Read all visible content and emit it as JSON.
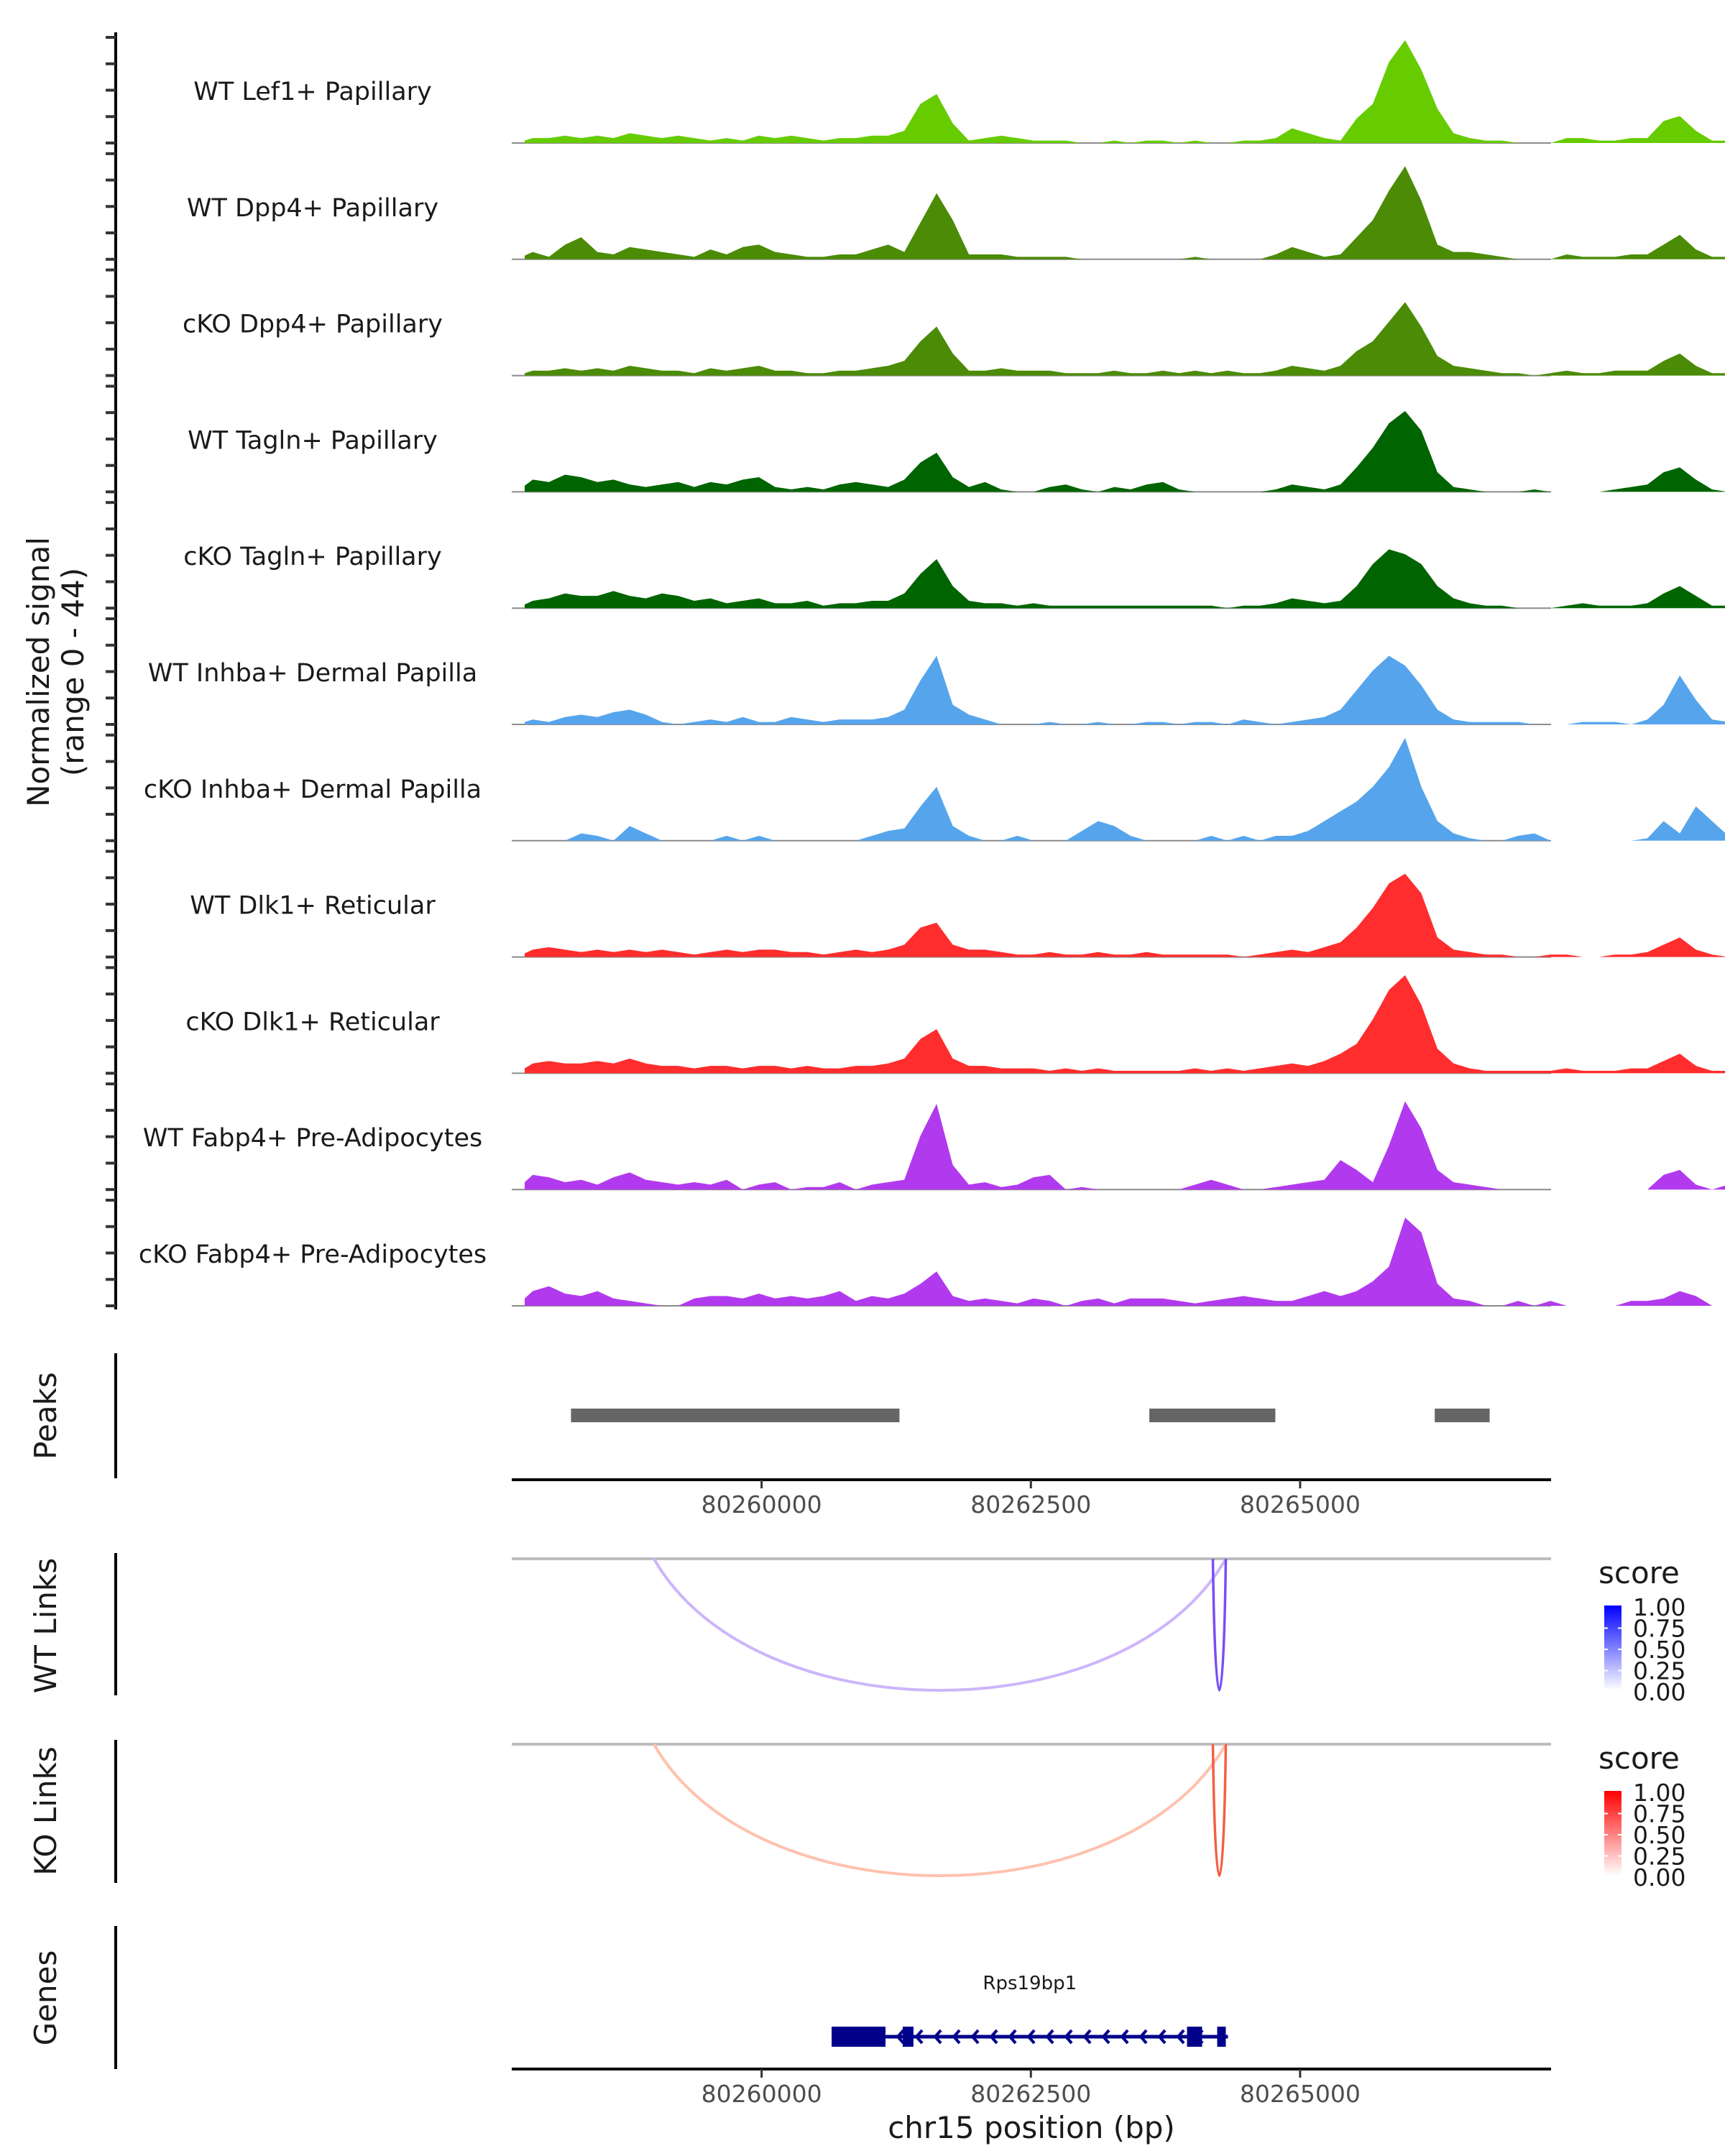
{
  "chart_data": {
    "type": "area",
    "title": "",
    "ylabel": "Normalized signal\n(range 0 - 44)",
    "ylabel_lines": [
      "Normalized signal",
      "(range 0 - 44)"
    ],
    "ylim": [
      0,
      44
    ],
    "xlabel": "chr15 position (bp)",
    "xlim": [
      80257680,
      80267330
    ],
    "x_ticks": [
      80260000,
      80262500,
      80265000
    ],
    "x_tick_labels": [
      "80260000",
      "80262500",
      "80265000"
    ],
    "bin_start": 80257800,
    "bin_size": 150,
    "coverage_tracks": [
      {
        "name": "WT Lef1+ Papillary",
        "color": "#66CC00",
        "values": [
          2,
          2,
          3,
          2,
          3,
          2,
          4,
          3,
          2,
          3,
          2,
          1,
          2,
          1,
          3,
          2,
          3,
          2,
          1,
          2,
          2,
          3,
          3,
          5,
          16,
          20,
          8,
          1,
          2,
          3,
          2,
          1,
          1,
          1,
          0,
          0,
          1,
          0,
          1,
          1,
          0,
          1,
          0,
          0,
          1,
          1,
          2,
          6,
          4,
          2,
          1,
          10,
          16,
          33,
          42,
          30,
          14,
          4,
          2,
          1,
          1,
          0,
          0,
          0,
          2,
          2,
          1,
          1,
          2,
          2,
          9,
          11,
          5,
          1,
          1
        ]
      },
      {
        "name": "WT Dpp4+ Papillary",
        "color": "#4B8B06",
        "values": [
          3,
          1,
          6,
          9,
          3,
          2,
          5,
          4,
          3,
          2,
          1,
          4,
          2,
          5,
          6,
          3,
          2,
          1,
          1,
          2,
          2,
          4,
          6,
          3,
          15,
          27,
          16,
          2,
          2,
          2,
          1,
          1,
          1,
          1,
          0,
          0,
          0,
          0,
          0,
          0,
          0,
          1,
          0,
          0,
          0,
          0,
          2,
          5,
          3,
          1,
          2,
          9,
          16,
          28,
          38,
          24,
          6,
          3,
          3,
          2,
          1,
          0,
          0,
          0,
          2,
          1,
          1,
          1,
          2,
          2,
          6,
          10,
          4,
          1,
          1
        ]
      },
      {
        "name": "cKO Dpp4+ Papillary",
        "color": "#4B8B06",
        "values": [
          2,
          2,
          3,
          2,
          3,
          2,
          4,
          3,
          2,
          2,
          1,
          3,
          2,
          3,
          4,
          2,
          2,
          1,
          1,
          2,
          2,
          3,
          4,
          6,
          14,
          20,
          9,
          2,
          2,
          3,
          2,
          2,
          2,
          1,
          1,
          1,
          2,
          1,
          1,
          2,
          1,
          2,
          1,
          2,
          1,
          1,
          2,
          4,
          3,
          2,
          4,
          10,
          14,
          22,
          30,
          20,
          8,
          4,
          3,
          2,
          1,
          1,
          0,
          1,
          2,
          1,
          1,
          2,
          2,
          2,
          6,
          9,
          4,
          1,
          1
        ]
      },
      {
        "name": "WT Tagln+ Papillary",
        "color": "#006400",
        "values": [
          5,
          4,
          7,
          6,
          4,
          5,
          3,
          2,
          3,
          4,
          2,
          4,
          3,
          5,
          6,
          2,
          1,
          2,
          1,
          3,
          4,
          3,
          2,
          5,
          12,
          16,
          6,
          2,
          4,
          1,
          0,
          0,
          2,
          3,
          1,
          0,
          2,
          1,
          3,
          4,
          1,
          0,
          0,
          0,
          0,
          0,
          1,
          3,
          2,
          1,
          3,
          10,
          18,
          28,
          33,
          25,
          8,
          2,
          1,
          0,
          0,
          0,
          1,
          0,
          0,
          0,
          0,
          1,
          2,
          3,
          8,
          10,
          5,
          1,
          0
        ]
      },
      {
        "name": "cKO Tagln+ Papillary",
        "color": "#006400",
        "values": [
          3,
          4,
          6,
          5,
          5,
          7,
          5,
          4,
          6,
          5,
          3,
          4,
          2,
          3,
          4,
          2,
          2,
          3,
          1,
          2,
          2,
          3,
          3,
          6,
          14,
          20,
          9,
          3,
          2,
          2,
          1,
          2,
          1,
          1,
          1,
          1,
          1,
          1,
          1,
          1,
          1,
          1,
          1,
          0,
          1,
          1,
          2,
          4,
          3,
          2,
          3,
          9,
          18,
          24,
          22,
          18,
          9,
          4,
          2,
          1,
          1,
          0,
          0,
          0,
          1,
          2,
          1,
          1,
          1,
          2,
          6,
          9,
          5,
          1,
          1
        ]
      },
      {
        "name": "WT Inhba+ Dermal Papilla",
        "color": "#56A5EC",
        "values": [
          2,
          1,
          3,
          4,
          3,
          5,
          6,
          4,
          1,
          0,
          1,
          2,
          1,
          3,
          1,
          1,
          3,
          2,
          1,
          2,
          2,
          2,
          3,
          6,
          18,
          28,
          8,
          4,
          2,
          0,
          0,
          0,
          1,
          0,
          0,
          1,
          0,
          0,
          1,
          1,
          0,
          1,
          1,
          0,
          2,
          1,
          0,
          1,
          2,
          3,
          6,
          14,
          22,
          28,
          24,
          16,
          6,
          2,
          1,
          1,
          1,
          1,
          0,
          0,
          0,
          1,
          1,
          1,
          0,
          2,
          8,
          20,
          10,
          2,
          1
        ]
      },
      {
        "name": "cKO Inhba+ Dermal Papilla",
        "color": "#56A5EC",
        "values": [
          0,
          0,
          0,
          3,
          2,
          0,
          6,
          3,
          0,
          0,
          0,
          0,
          2,
          0,
          2,
          0,
          0,
          0,
          0,
          0,
          0,
          2,
          4,
          5,
          14,
          22,
          6,
          2,
          0,
          0,
          2,
          0,
          0,
          0,
          4,
          8,
          6,
          2,
          0,
          0,
          0,
          0,
          2,
          0,
          2,
          0,
          2,
          2,
          4,
          8,
          12,
          16,
          22,
          30,
          42,
          22,
          8,
          3,
          1,
          0,
          0,
          2,
          3,
          0,
          0,
          0,
          0,
          0,
          0,
          1,
          8,
          3,
          14,
          8,
          2
        ]
      },
      {
        "name": "WT Dlk1+ Reticular",
        "color": "#FF2D2D",
        "values": [
          3,
          4,
          3,
          2,
          3,
          2,
          3,
          2,
          3,
          2,
          1,
          2,
          3,
          2,
          3,
          3,
          2,
          2,
          1,
          2,
          3,
          2,
          3,
          5,
          12,
          14,
          5,
          3,
          3,
          2,
          1,
          1,
          2,
          1,
          1,
          2,
          1,
          1,
          2,
          1,
          1,
          1,
          1,
          1,
          0,
          1,
          2,
          3,
          2,
          4,
          6,
          12,
          20,
          30,
          34,
          26,
          8,
          3,
          2,
          1,
          1,
          0,
          0,
          1,
          1,
          0,
          0,
          1,
          1,
          2,
          5,
          8,
          3,
          1,
          0
        ]
      },
      {
        "name": "cKO Dlk1+ Reticular",
        "color": "#FF2D2D",
        "values": [
          4,
          5,
          4,
          4,
          5,
          4,
          6,
          4,
          3,
          3,
          2,
          3,
          3,
          2,
          3,
          3,
          2,
          3,
          2,
          2,
          3,
          3,
          4,
          6,
          14,
          18,
          6,
          3,
          3,
          2,
          2,
          2,
          1,
          2,
          1,
          2,
          1,
          1,
          1,
          1,
          1,
          2,
          1,
          2,
          1,
          2,
          3,
          4,
          3,
          5,
          8,
          12,
          22,
          34,
          40,
          28,
          10,
          4,
          2,
          1,
          1,
          1,
          1,
          1,
          2,
          1,
          1,
          1,
          2,
          2,
          5,
          8,
          3,
          1,
          1
        ]
      },
      {
        "name": "WT Fabp4+ Pre-Adipocytes",
        "color": "#B23AEE",
        "values": [
          6,
          5,
          3,
          4,
          2,
          5,
          7,
          4,
          3,
          2,
          3,
          2,
          4,
          0,
          2,
          3,
          0,
          1,
          1,
          3,
          0,
          2,
          3,
          4,
          22,
          35,
          10,
          2,
          3,
          1,
          2,
          5,
          6,
          0,
          1,
          0,
          0,
          0,
          0,
          0,
          0,
          2,
          4,
          2,
          0,
          0,
          1,
          2,
          3,
          4,
          12,
          8,
          3,
          18,
          36,
          25,
          8,
          3,
          2,
          1,
          0,
          0,
          0,
          0,
          0,
          0,
          0,
          0,
          0,
          0,
          6,
          8,
          2,
          0,
          2
        ]
      },
      {
        "name": "cKO Fabp4+ Pre-Adipocytes",
        "color": "#B23AEE",
        "values": [
          6,
          8,
          5,
          4,
          6,
          3,
          2,
          1,
          0,
          0,
          3,
          4,
          4,
          3,
          5,
          3,
          4,
          3,
          4,
          6,
          2,
          4,
          3,
          5,
          9,
          14,
          4,
          2,
          3,
          2,
          1,
          3,
          2,
          0,
          2,
          3,
          1,
          3,
          3,
          3,
          2,
          1,
          2,
          3,
          4,
          3,
          2,
          2,
          4,
          6,
          4,
          6,
          10,
          16,
          36,
          30,
          9,
          3,
          2,
          0,
          0,
          2,
          0,
          2,
          0,
          0,
          0,
          0,
          2,
          2,
          3,
          6,
          4,
          0,
          0
        ]
      }
    ],
    "peaks": [
      {
        "start": 80258230,
        "end": 80261280
      },
      {
        "start": 80263600,
        "end": 80264770
      },
      {
        "start": 80266250,
        "end": 80266760
      }
    ],
    "wt_links": {
      "title": "score",
      "color_low": "#FFFFFF",
      "color_high": "#0000FF",
      "legend_ticks": [
        "1.00",
        "0.75",
        "0.50",
        "0.25",
        "0.00"
      ],
      "links": [
        {
          "start": 80259000,
          "end": 80264310,
          "score": 0.25,
          "color": "#CDB5FB"
        },
        {
          "start": 80264190,
          "end": 80264310,
          "score": 0.75,
          "color": "#7A4DF6"
        }
      ]
    },
    "ko_links": {
      "title": "score",
      "color_low": "#FFFFFF",
      "color_high": "#FF0000",
      "legend_ticks": [
        "1.00",
        "0.75",
        "0.50",
        "0.25",
        "0.00"
      ],
      "links": [
        {
          "start": 80259000,
          "end": 80264310,
          "score": 0.25,
          "color": "#FFC1AE"
        },
        {
          "start": 80264190,
          "end": 80264310,
          "score": 0.75,
          "color": "#F45F43"
        }
      ]
    },
    "genes": [
      {
        "name": "Rps19bp1",
        "strand": "-",
        "start": 80260650,
        "end": 80264330,
        "color": "#00008B",
        "exons": [
          {
            "start": 80260650,
            "end": 80261150
          },
          {
            "start": 80261310,
            "end": 80261410
          },
          {
            "start": 80263950,
            "end": 80264090
          },
          {
            "start": 80264230,
            "end": 80264310
          }
        ]
      }
    ],
    "side_labels": {
      "peaks": "Peaks",
      "wt_links": "WT Links",
      "ko_links": "KO Links",
      "genes": "Genes"
    }
  }
}
